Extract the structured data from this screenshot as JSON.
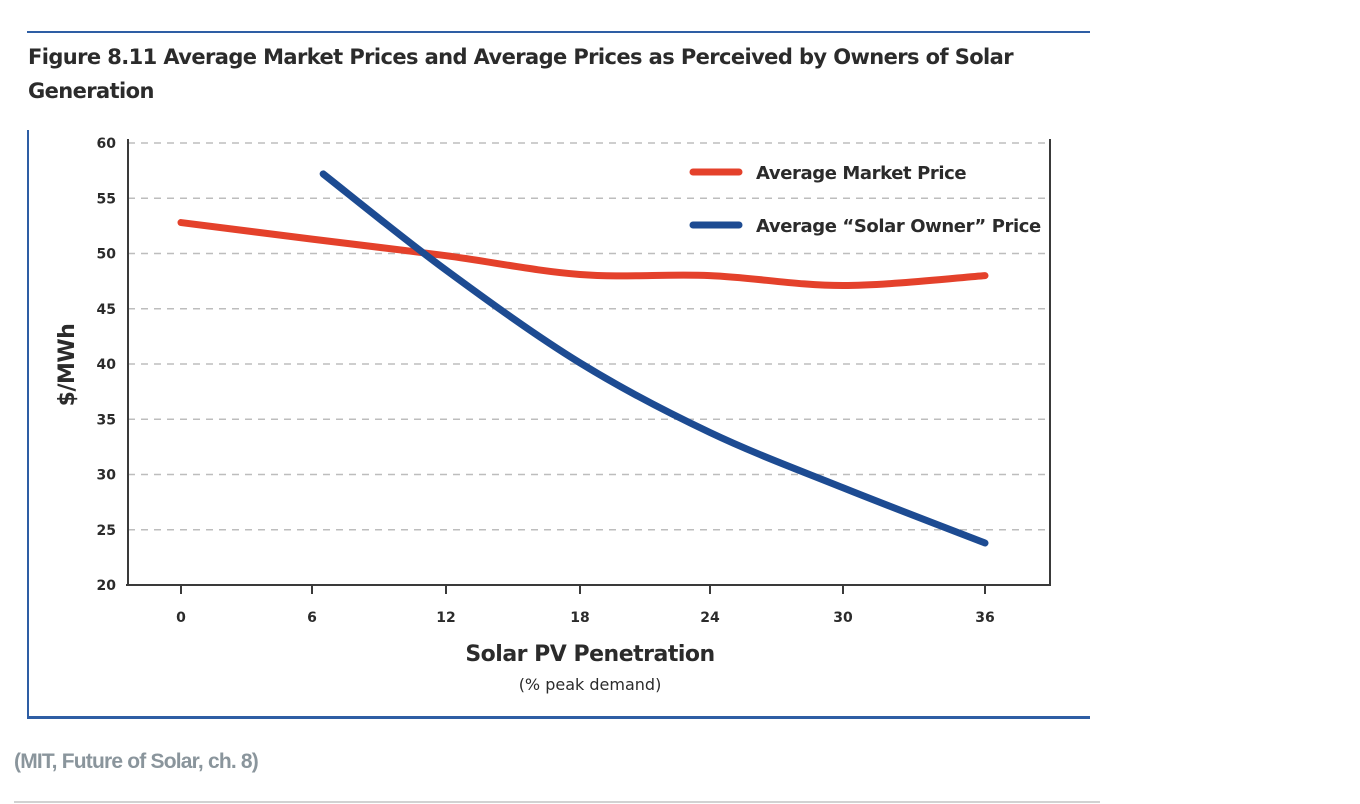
{
  "figure": {
    "title": "Figure 8.11  Average Market Prices and Average Prices as Perceived by Owners of Solar Generation",
    "caption": "(MIT, Future of Solar, ch. 8)"
  },
  "colors": {
    "market": "#e4412b",
    "solar_owner": "#1d4b92",
    "frame_rule": "#2e5ea4",
    "grid": "#bdbdbd"
  },
  "chart_data": {
    "type": "line",
    "title": "Average Market Prices and Average Prices as Perceived by Owners of Solar Generation",
    "xlabel": "Solar PV Penetration",
    "xlabel_sub": "(% peak demand)",
    "ylabel": "$/MWh",
    "xlim": [
      -4,
      40
    ],
    "ylim": [
      20,
      60
    ],
    "xticks": [
      0,
      6,
      12,
      18,
      24,
      30,
      36
    ],
    "xtick_labels": [
      "0",
      "6",
      "12",
      "18",
      "24",
      "30",
      "36"
    ],
    "yticks": [
      20,
      25,
      30,
      35,
      40,
      45,
      50,
      55,
      60
    ],
    "ytick_labels": [
      "20",
      "25",
      "30",
      "35",
      "40",
      "45",
      "50",
      "55",
      "60"
    ],
    "grid": "horizontal-dashed",
    "legend_position": "top-right",
    "series": [
      {
        "name": "Average Market Price",
        "x": [
          0,
          6,
          12,
          18,
          24,
          30,
          36
        ],
        "y": [
          52.8,
          51.3,
          49.8,
          48.1,
          48.0,
          47.1,
          48.0
        ]
      },
      {
        "name": "Average “Solar Owner” Price",
        "x": [
          6.5,
          12,
          18,
          24,
          30,
          36
        ],
        "y": [
          57.2,
          48.5,
          40.1,
          33.8,
          28.8,
          23.8
        ]
      }
    ]
  }
}
